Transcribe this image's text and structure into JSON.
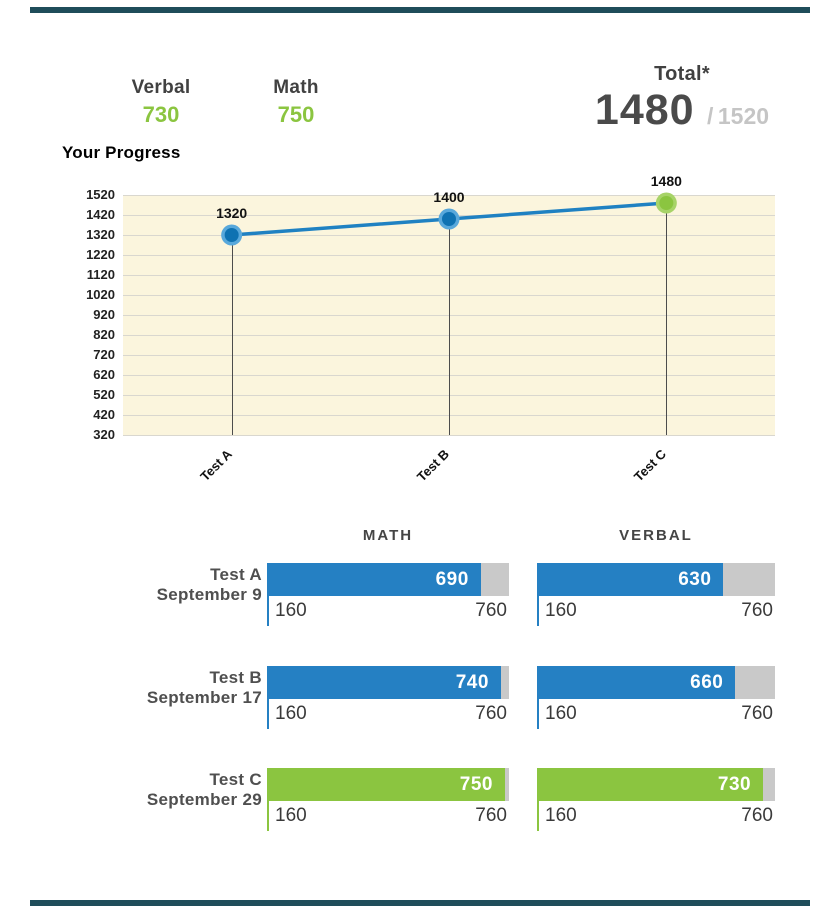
{
  "header": {
    "verbal_label": "Verbal",
    "verbal_score": "730",
    "math_label": "Math",
    "math_score": "750",
    "total_label": "Total*",
    "total_score": "1480",
    "total_divider": "/",
    "total_max": "1520"
  },
  "chart_data": {
    "type": "line",
    "title": "Your Progress",
    "x": [
      "Test A",
      "Test B",
      "Test C"
    ],
    "values": [
      1320,
      1400,
      1480
    ],
    "point_labels": [
      "1320",
      "1400",
      "1480"
    ],
    "point_colors": [
      "blue",
      "blue",
      "green"
    ],
    "ylim": [
      320,
      1520
    ],
    "yticks": [
      1520,
      1420,
      1320,
      1220,
      1120,
      1020,
      920,
      820,
      720,
      620,
      520,
      420,
      320
    ],
    "grid": true,
    "legend": false,
    "background": "#fbf5dd",
    "line_color": "#1f81c2"
  },
  "comparison": {
    "columns": [
      "MATH",
      "VERBAL"
    ],
    "scale": {
      "min": "160",
      "max": "760"
    },
    "rows": [
      {
        "name": "Test A",
        "date": "September 9",
        "math": 690,
        "verbal": 630,
        "color": "blue"
      },
      {
        "name": "Test B",
        "date": "September 17",
        "math": 740,
        "verbal": 660,
        "color": "blue"
      },
      {
        "name": "Test C",
        "date": "September 29",
        "math": 750,
        "verbal": 730,
        "color": "green"
      }
    ]
  },
  "colors": {
    "blue": "#2580c3",
    "blue_deep": "#0e72b2",
    "blue_ring": "#58a8db",
    "green": "#8bc540",
    "green_ring": "#a7d368",
    "track_gray": "#c9c9c9",
    "divider_teal": "#1f4d5a"
  }
}
